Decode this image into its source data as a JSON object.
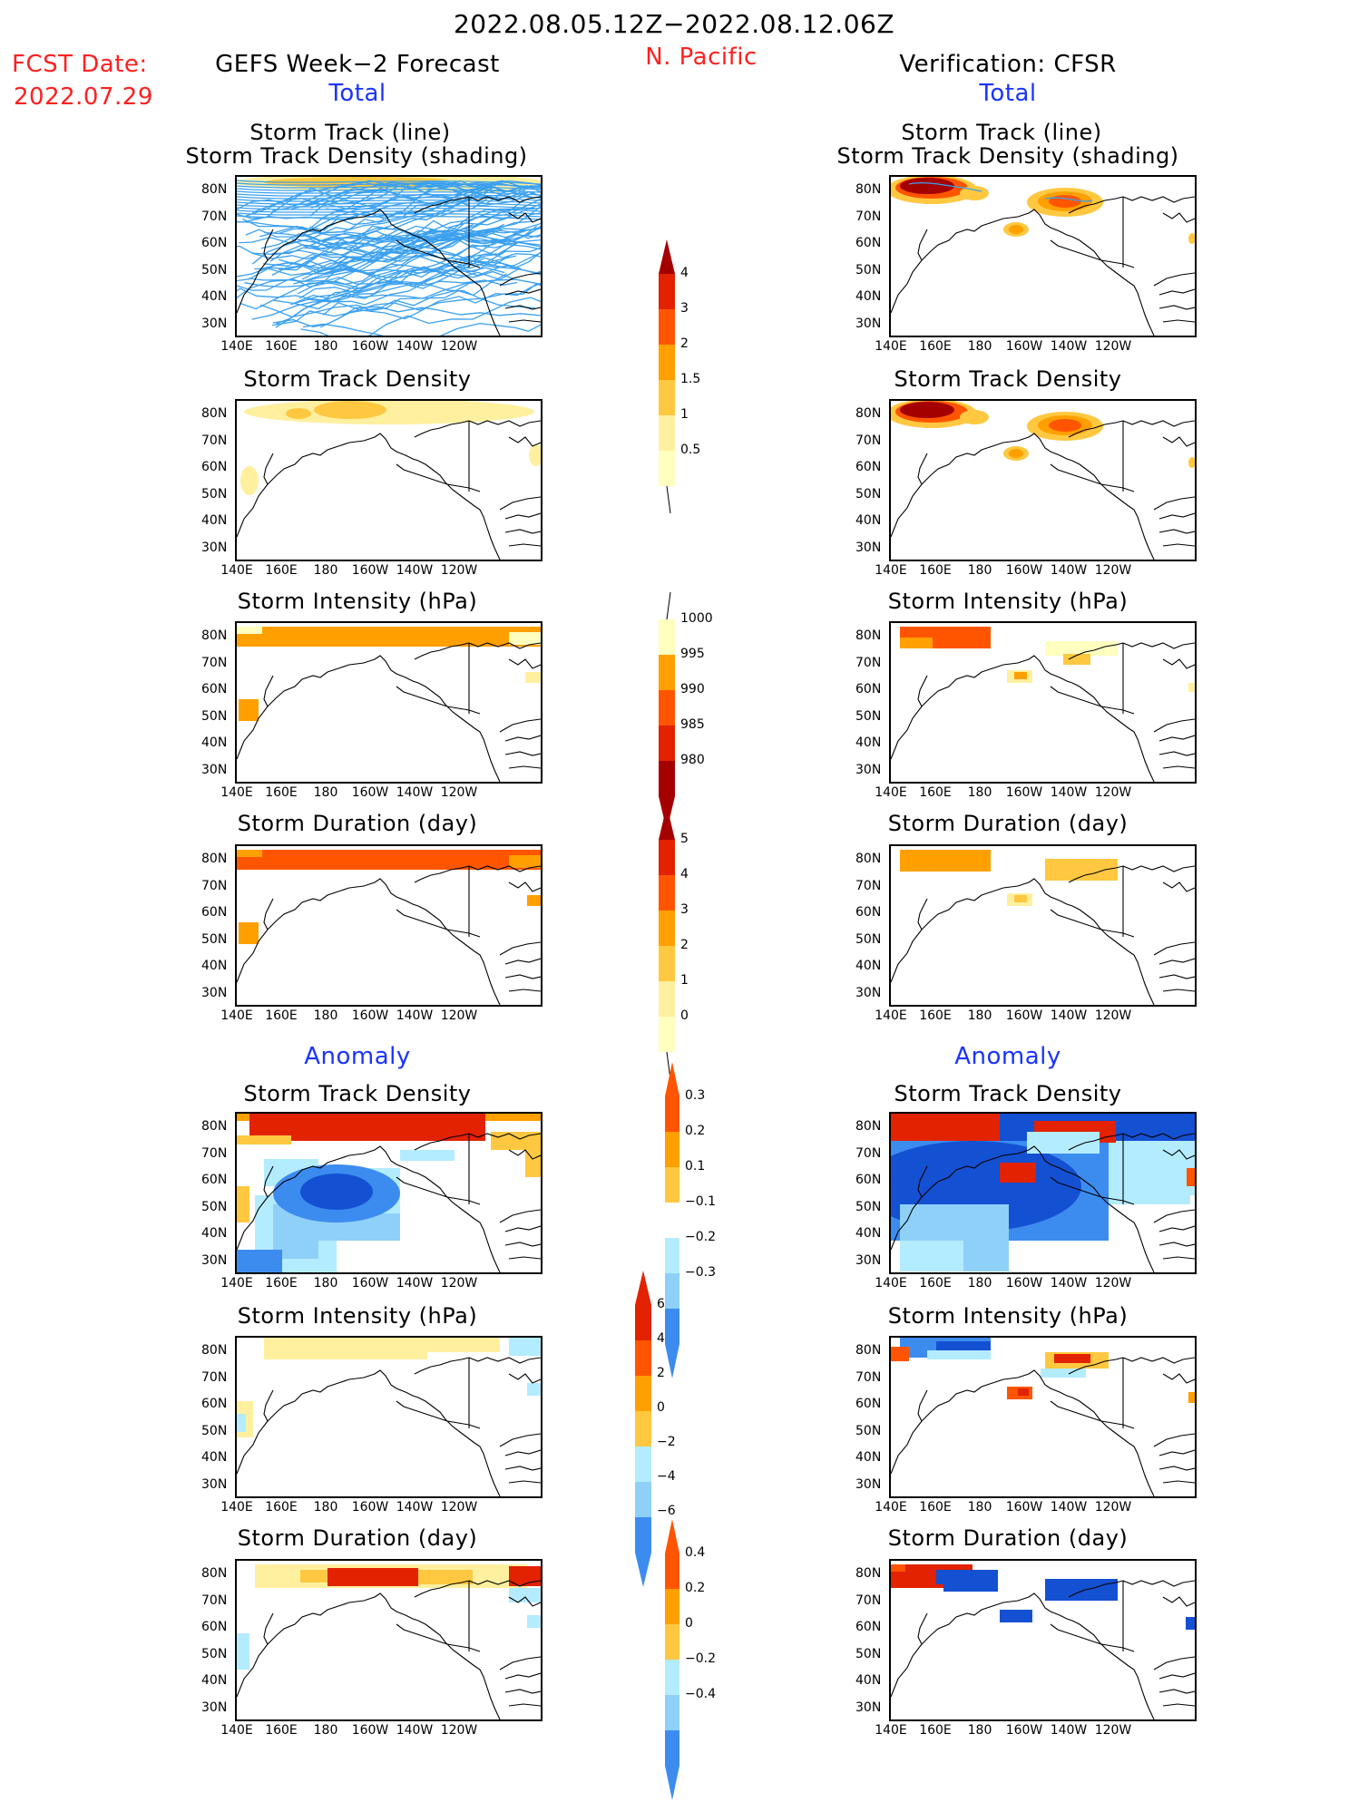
{
  "header": {
    "date_range": "2022.08.05.12Z−2022.08.12.06Z",
    "region": "N. Pacific",
    "fcst_label": "FCST Date:",
    "fcst_date": "2022.07.29",
    "left_title": "GEFS Week−2 Forecast",
    "right_title": "Verification: CFSR",
    "total": "Total",
    "anomaly": "Anomaly"
  },
  "panel_titles": {
    "track_line": "Storm Track (line)",
    "track_shading": "Storm Track Density (shading)",
    "density": "Storm Track Density",
    "intensity": "Storm Intensity (hPa)",
    "duration": "Storm Duration (day)"
  },
  "axes": {
    "lat_labels": [
      "80N",
      "70N",
      "60N",
      "50N",
      "40N",
      "30N"
    ],
    "lon_labels": [
      "140E",
      "160E",
      "180",
      "160W",
      "140W",
      "120W"
    ]
  },
  "colorbars": {
    "density": [
      "4",
      "3",
      "2",
      "1.5",
      "1",
      "0.5"
    ],
    "intensity": [
      "1000",
      "995",
      "990",
      "985",
      "980"
    ],
    "duration": [
      "5",
      "4",
      "3",
      "2",
      "1",
      "0"
    ],
    "anom_density": [
      "0.3",
      "0.2",
      "0.1",
      "−0.1",
      "−0.2",
      "−0.3"
    ],
    "anom_intensity": [
      "6",
      "4",
      "2",
      "0",
      "−2",
      "−4",
      "−6"
    ],
    "anom_duration": [
      "0.4",
      "0.2",
      "0",
      "−0.2",
      "−0.4"
    ]
  },
  "colors": {
    "dark_red": "#a50000",
    "red": "#e22200",
    "orange_red": "#ff5500",
    "orange": "#ffa000",
    "light_orange": "#ffc840",
    "yellow": "#fff0a0",
    "pale_yellow": "#ffffc0",
    "track_blue": "#3aa0f0",
    "light_cyan": "#b4ecff",
    "light_blue": "#8ed0f8",
    "mid_blue": "#3c8cf0",
    "dark_blue": "#1450d2"
  }
}
